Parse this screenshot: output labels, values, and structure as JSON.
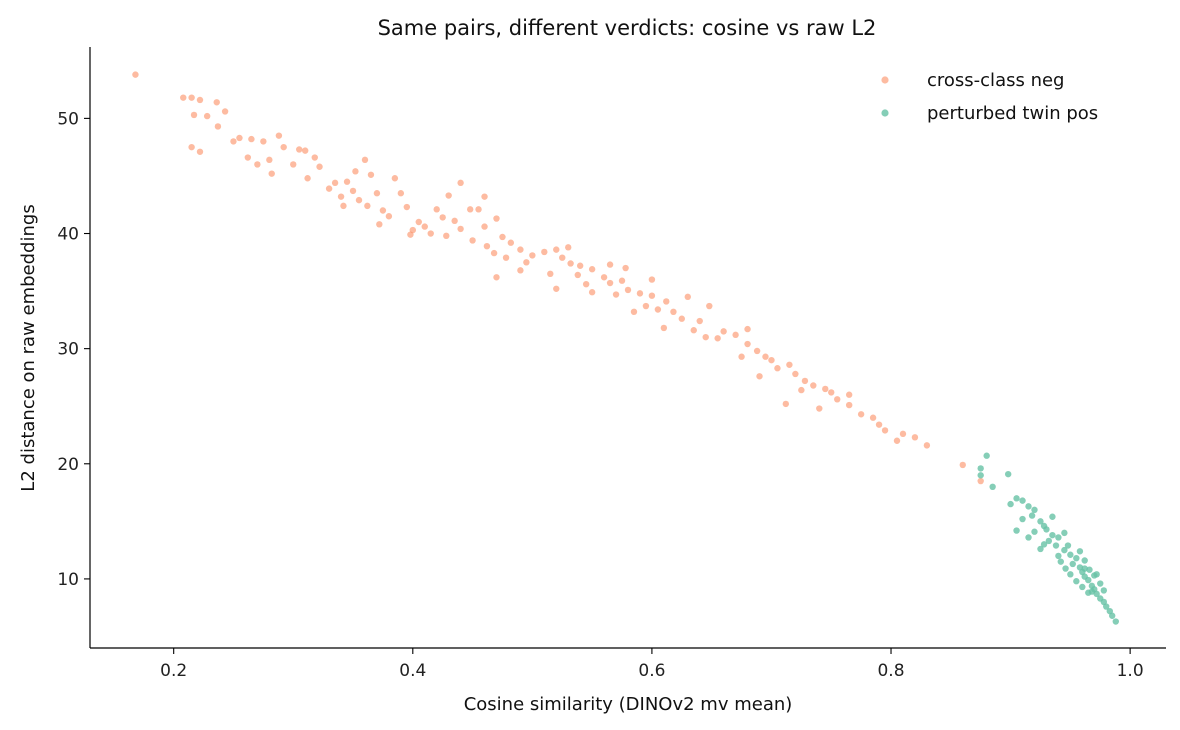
{
  "chart_data": {
    "type": "scatter",
    "title": "Same pairs, different verdicts: cosine vs raw L2",
    "xlabel": "Cosine similarity (DINOv2 mv mean)",
    "ylabel": "L2 distance on raw embeddings",
    "xlim": [
      0.13,
      1.03
    ],
    "ylim": [
      4.0,
      56.2
    ],
    "xticks": [
      0.2,
      0.4,
      0.6,
      0.8,
      1.0
    ],
    "xtick_labels": [
      "0.2",
      "0.4",
      "0.6",
      "0.8",
      "1.0"
    ],
    "yticks": [
      10,
      20,
      30,
      40,
      50
    ],
    "ytick_labels": [
      "10",
      "20",
      "30",
      "40",
      "50"
    ],
    "grid": false,
    "legend_position": "top-right",
    "series": [
      {
        "name": "cross-class neg",
        "color": "#fc8d62",
        "points": [
          [
            0.168,
            53.8
          ],
          [
            0.208,
            51.8
          ],
          [
            0.215,
            51.8
          ],
          [
            0.222,
            51.6
          ],
          [
            0.236,
            51.4
          ],
          [
            0.217,
            50.3
          ],
          [
            0.228,
            50.2
          ],
          [
            0.243,
            50.6
          ],
          [
            0.237,
            49.3
          ],
          [
            0.215,
            47.5
          ],
          [
            0.222,
            47.1
          ],
          [
            0.25,
            48.0
          ],
          [
            0.255,
            48.3
          ],
          [
            0.265,
            48.2
          ],
          [
            0.275,
            48.0
          ],
          [
            0.288,
            48.5
          ],
          [
            0.292,
            47.5
          ],
          [
            0.305,
            47.3
          ],
          [
            0.31,
            47.2
          ],
          [
            0.318,
            46.6
          ],
          [
            0.262,
            46.6
          ],
          [
            0.27,
            46.0
          ],
          [
            0.28,
            46.4
          ],
          [
            0.3,
            46.0
          ],
          [
            0.322,
            45.8
          ],
          [
            0.335,
            44.4
          ],
          [
            0.345,
            44.5
          ],
          [
            0.352,
            45.4
          ],
          [
            0.36,
            46.4
          ],
          [
            0.365,
            45.1
          ],
          [
            0.33,
            43.9
          ],
          [
            0.34,
            43.2
          ],
          [
            0.35,
            43.7
          ],
          [
            0.37,
            43.5
          ],
          [
            0.385,
            44.8
          ],
          [
            0.39,
            43.5
          ],
          [
            0.355,
            42.9
          ],
          [
            0.362,
            42.4
          ],
          [
            0.375,
            42.0
          ],
          [
            0.38,
            41.5
          ],
          [
            0.395,
            42.3
          ],
          [
            0.405,
            41.0
          ],
          [
            0.41,
            40.6
          ],
          [
            0.42,
            42.1
          ],
          [
            0.425,
            41.4
          ],
          [
            0.43,
            43.3
          ],
          [
            0.44,
            44.4
          ],
          [
            0.448,
            42.1
          ],
          [
            0.455,
            42.1
          ],
          [
            0.435,
            41.1
          ],
          [
            0.4,
            40.3
          ],
          [
            0.415,
            40.0
          ],
          [
            0.428,
            39.8
          ],
          [
            0.44,
            40.4
          ],
          [
            0.46,
            40.6
          ],
          [
            0.47,
            41.3
          ],
          [
            0.45,
            39.4
          ],
          [
            0.462,
            38.9
          ],
          [
            0.475,
            39.7
          ],
          [
            0.482,
            39.2
          ],
          [
            0.49,
            38.6
          ],
          [
            0.5,
            38.1
          ],
          [
            0.495,
            37.5
          ],
          [
            0.478,
            37.9
          ],
          [
            0.468,
            38.3
          ],
          [
            0.51,
            38.4
          ],
          [
            0.52,
            38.6
          ],
          [
            0.525,
            37.9
          ],
          [
            0.532,
            37.4
          ],
          [
            0.54,
            37.2
          ],
          [
            0.55,
            36.9
          ],
          [
            0.538,
            36.4
          ],
          [
            0.56,
            36.2
          ],
          [
            0.545,
            35.6
          ],
          [
            0.565,
            35.7
          ],
          [
            0.575,
            35.9
          ],
          [
            0.58,
            35.1
          ],
          [
            0.57,
            34.7
          ],
          [
            0.59,
            34.8
          ],
          [
            0.6,
            34.6
          ],
          [
            0.612,
            34.1
          ],
          [
            0.605,
            33.4
          ],
          [
            0.618,
            33.2
          ],
          [
            0.625,
            32.6
          ],
          [
            0.64,
            32.4
          ],
          [
            0.648,
            33.7
          ],
          [
            0.66,
            31.5
          ],
          [
            0.655,
            30.9
          ],
          [
            0.67,
            31.2
          ],
          [
            0.68,
            30.4
          ],
          [
            0.688,
            29.8
          ],
          [
            0.695,
            29.3
          ],
          [
            0.7,
            29.0
          ],
          [
            0.705,
            28.3
          ],
          [
            0.715,
            28.6
          ],
          [
            0.72,
            27.8
          ],
          [
            0.728,
            27.2
          ],
          [
            0.735,
            26.8
          ],
          [
            0.745,
            26.5
          ],
          [
            0.75,
            26.2
          ],
          [
            0.755,
            25.6
          ],
          [
            0.765,
            25.1
          ],
          [
            0.775,
            24.3
          ],
          [
            0.785,
            24.0
          ],
          [
            0.79,
            23.4
          ],
          [
            0.795,
            22.9
          ],
          [
            0.81,
            22.6
          ],
          [
            0.82,
            22.3
          ],
          [
            0.83,
            21.6
          ],
          [
            0.86,
            19.9
          ],
          [
            0.875,
            18.5
          ],
          [
            0.49,
            36.8
          ],
          [
            0.47,
            36.2
          ],
          [
            0.515,
            36.5
          ],
          [
            0.595,
            33.7
          ],
          [
            0.61,
            31.8
          ],
          [
            0.6,
            36.0
          ],
          [
            0.635,
            31.6
          ],
          [
            0.69,
            27.6
          ],
          [
            0.712,
            25.2
          ],
          [
            0.74,
            24.8
          ],
          [
            0.765,
            26.0
          ],
          [
            0.805,
            22.0
          ],
          [
            0.565,
            37.3
          ],
          [
            0.585,
            33.2
          ],
          [
            0.63,
            34.5
          ],
          [
            0.372,
            40.8
          ],
          [
            0.398,
            39.9
          ],
          [
            0.342,
            42.4
          ],
          [
            0.312,
            44.8
          ],
          [
            0.282,
            45.2
          ],
          [
            0.46,
            43.2
          ],
          [
            0.53,
            38.8
          ],
          [
            0.578,
            37.0
          ],
          [
            0.645,
            31.0
          ],
          [
            0.725,
            26.4
          ],
          [
            0.675,
            29.3
          ],
          [
            0.55,
            34.9
          ],
          [
            0.68,
            31.7
          ],
          [
            0.52,
            35.2
          ]
        ]
      },
      {
        "name": "perturbed twin pos",
        "color": "#66c2a5",
        "points": [
          [
            0.88,
            20.7
          ],
          [
            0.875,
            19.6
          ],
          [
            0.875,
            19.0
          ],
          [
            0.898,
            19.1
          ],
          [
            0.885,
            18.0
          ],
          [
            0.9,
            16.5
          ],
          [
            0.905,
            17.0
          ],
          [
            0.91,
            16.8
          ],
          [
            0.915,
            16.3
          ],
          [
            0.92,
            16.0
          ],
          [
            0.91,
            15.2
          ],
          [
            0.918,
            15.5
          ],
          [
            0.925,
            15.0
          ],
          [
            0.928,
            14.6
          ],
          [
            0.905,
            14.2
          ],
          [
            0.92,
            14.1
          ],
          [
            0.93,
            14.3
          ],
          [
            0.935,
            13.8
          ],
          [
            0.932,
            13.3
          ],
          [
            0.94,
            13.6
          ],
          [
            0.938,
            12.9
          ],
          [
            0.945,
            12.5
          ],
          [
            0.948,
            12.9
          ],
          [
            0.95,
            12.1
          ],
          [
            0.955,
            11.8
          ],
          [
            0.952,
            11.3
          ],
          [
            0.958,
            11.0
          ],
          [
            0.96,
            10.6
          ],
          [
            0.962,
            10.2
          ],
          [
            0.965,
            9.9
          ],
          [
            0.968,
            9.4
          ],
          [
            0.97,
            9.1
          ],
          [
            0.972,
            8.7
          ],
          [
            0.975,
            8.3
          ],
          [
            0.978,
            8.0
          ],
          [
            0.98,
            7.6
          ],
          [
            0.983,
            7.2
          ],
          [
            0.985,
            6.8
          ],
          [
            0.988,
            6.3
          ],
          [
            0.958,
            12.4
          ],
          [
            0.962,
            11.6
          ],
          [
            0.966,
            10.8
          ],
          [
            0.97,
            10.3
          ],
          [
            0.942,
            11.5
          ],
          [
            0.946,
            10.9
          ],
          [
            0.95,
            10.4
          ],
          [
            0.955,
            9.8
          ],
          [
            0.96,
            9.3
          ],
          [
            0.965,
            8.8
          ],
          [
            0.972,
            10.4
          ],
          [
            0.975,
            9.6
          ],
          [
            0.978,
            9.0
          ],
          [
            0.935,
            15.4
          ],
          [
            0.928,
            13.0
          ],
          [
            0.925,
            12.6
          ],
          [
            0.915,
            13.6
          ],
          [
            0.945,
            14.0
          ],
          [
            0.94,
            12.0
          ],
          [
            0.962,
            10.9
          ],
          [
            0.968,
            8.9
          ]
        ]
      }
    ]
  }
}
